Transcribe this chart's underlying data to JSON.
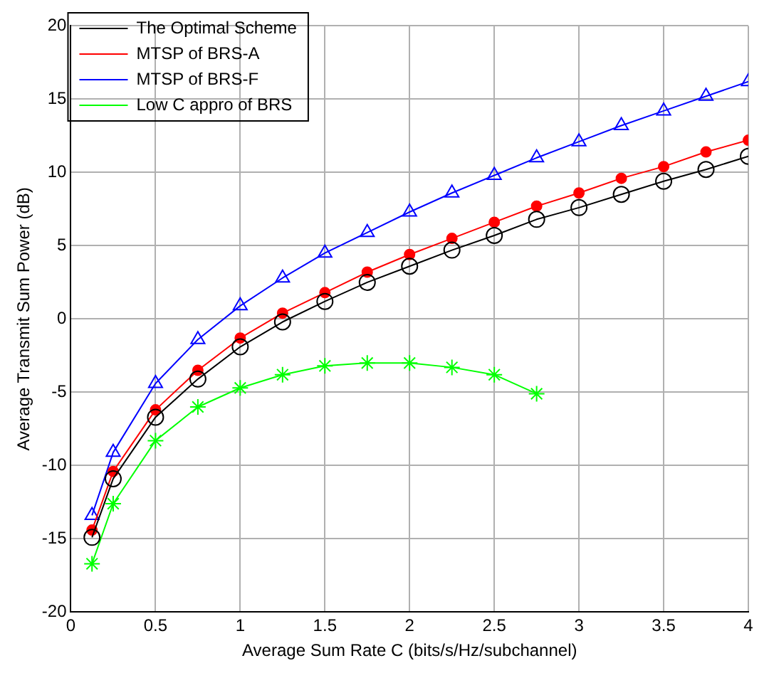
{
  "chart_data": {
    "type": "line",
    "xlabel": "Average Sum Rate C (bits/s/Hz/subchannel)",
    "ylabel": "Average Transmit Sum Power (dB)",
    "x": [
      0.125,
      0.25,
      0.5,
      0.75,
      1,
      1.25,
      1.5,
      1.75,
      2,
      2.25,
      2.5,
      2.75,
      3,
      3.25,
      3.5,
      3.75,
      4
    ],
    "xlim": [
      0,
      4
    ],
    "xticks": [
      0,
      0.5,
      1,
      1.5,
      2,
      2.5,
      3,
      3.5,
      4
    ],
    "ylim": [
      -20,
      20
    ],
    "yticks": [
      -20,
      -15,
      -10,
      -5,
      0,
      5,
      10,
      15,
      20
    ],
    "grid": true,
    "legend": "top left",
    "line_style": "solid",
    "series": [
      {
        "name": "The Optimal Scheme",
        "color": "#000000",
        "marker": "circle",
        "values": [
          -14.9,
          -10.9,
          -6.7,
          -4.1,
          -1.9,
          -0.2,
          1.2,
          2.5,
          3.6,
          4.7,
          5.7,
          6.8,
          7.6,
          8.5,
          9.4,
          10.2,
          11.1
        ]
      },
      {
        "name": "MTSP of BRS-A",
        "color": "#ff0000",
        "marker": "circle",
        "values": [
          -14.4,
          -10.4,
          -6.2,
          -3.5,
          -1.3,
          0.4,
          1.8,
          3.2,
          4.4,
          5.5,
          6.6,
          7.7,
          8.6,
          9.6,
          10.4,
          11.4,
          12.2
        ]
      },
      {
        "name": "MTSP of BRS-F",
        "color": "#0000ff",
        "marker": "triangle",
        "values": [
          -13.4,
          -9.1,
          -4.4,
          -1.4,
          0.9,
          2.8,
          4.5,
          5.9,
          7.3,
          8.6,
          9.8,
          11,
          12.1,
          13.2,
          14.2,
          15.2,
          16.2
        ]
      },
      {
        "name": "Low C appro of BRS",
        "color": "#00ff00",
        "marker": "cross",
        "values": [
          -16.7,
          -12.6,
          -8.3,
          -6,
          -4.7,
          -3.8,
          -3.2,
          -3,
          -3,
          -3.3,
          -3.8,
          -5.1,
          null,
          null,
          null,
          null,
          null
        ]
      }
    ]
  }
}
